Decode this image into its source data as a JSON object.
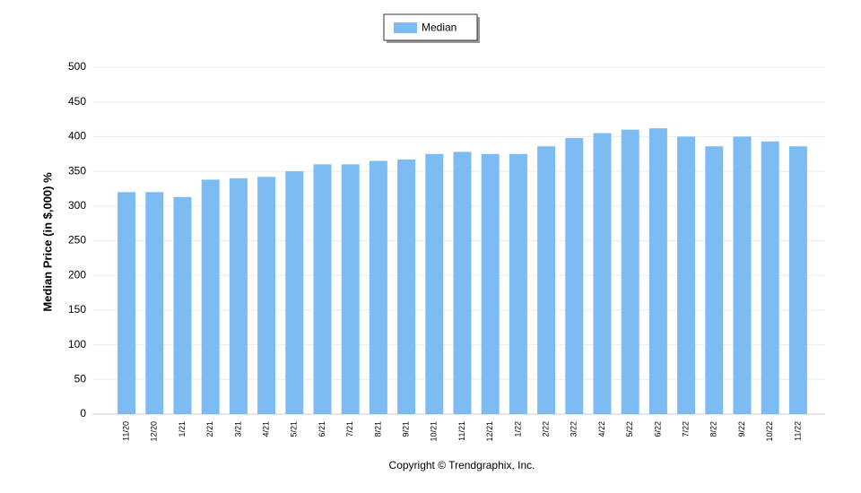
{
  "chart_data": {
    "type": "bar",
    "y_label": "Median Price (in $,000) %",
    "copyright": "Copyright © Trendgraphix, Inc.",
    "categories": [
      "11/20",
      "12/20",
      "1/21",
      "2/21",
      "3/21",
      "4/21",
      "5/21",
      "6/21",
      "7/21",
      "8/21",
      "9/21",
      "10/21",
      "11/21",
      "12/21",
      "1/22",
      "2/22",
      "3/22",
      "4/22",
      "5/22",
      "6/22",
      "7/22",
      "8/22",
      "9/22",
      "10/22",
      "11/22"
    ],
    "series": [
      {
        "name": "Median",
        "color": "#7cbcf2",
        "values": [
          320,
          320,
          313,
          338,
          340,
          342,
          350,
          360,
          360,
          365,
          367,
          375,
          378,
          375,
          375,
          386,
          398,
          405,
          410,
          412,
          400,
          386,
          400,
          393,
          386
        ]
      }
    ],
    "ylim": [
      0,
      500
    ],
    "yticks": [
      0,
      50,
      100,
      150,
      200,
      250,
      300,
      350,
      400,
      450,
      500
    ],
    "grid": true
  }
}
